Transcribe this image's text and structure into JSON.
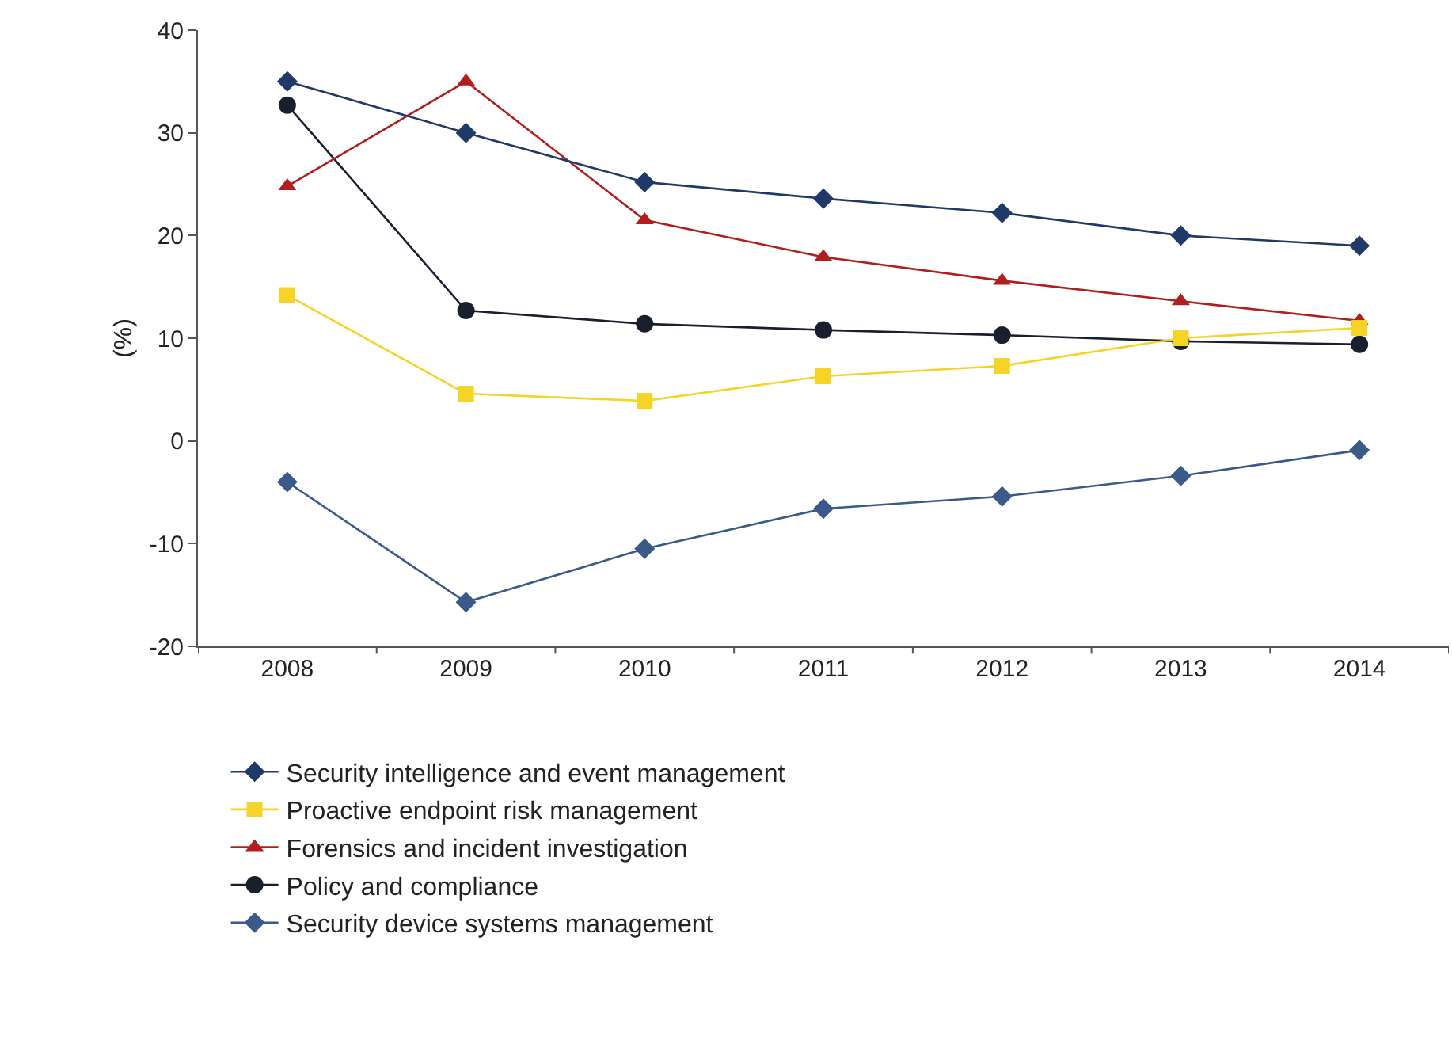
{
  "chart_data": {
    "type": "line",
    "ylabel": "(%)",
    "categories": [
      "2008",
      "2009",
      "2010",
      "2011",
      "2012",
      "2013",
      "2014"
    ],
    "ylim": [
      -20,
      40
    ],
    "yticks": [
      -20,
      -10,
      0,
      10,
      20,
      30,
      40
    ],
    "grid": false,
    "legend": "bottom",
    "series": [
      {
        "name": "Security intelligence and event management",
        "color": "#1f3a68",
        "marker": "diamond",
        "values": [
          35,
          30,
          25.2,
          23.6,
          22.2,
          20,
          19
        ]
      },
      {
        "name": "Proactive endpoint risk management",
        "color": "#f5d327",
        "marker": "square",
        "values": [
          14.2,
          4.6,
          3.9,
          6.3,
          7.3,
          10,
          11
        ]
      },
      {
        "name": "Forensics and incident investigation",
        "color": "#b01e1e",
        "marker": "triangle",
        "values": [
          24.8,
          35,
          21.5,
          17.9,
          15.6,
          13.6,
          11.7
        ]
      },
      {
        "name": "Policy and compliance",
        "color": "#1a1f2e",
        "marker": "circle",
        "values": [
          32.7,
          12.7,
          11.4,
          10.8,
          10.3,
          9.7,
          9.4
        ]
      },
      {
        "name": "Security device systems management",
        "color": "#3b5a8a",
        "marker": "diamond",
        "values": [
          -4,
          -15.7,
          -10.5,
          -6.6,
          -5.4,
          -3.4,
          -0.9
        ]
      }
    ]
  }
}
